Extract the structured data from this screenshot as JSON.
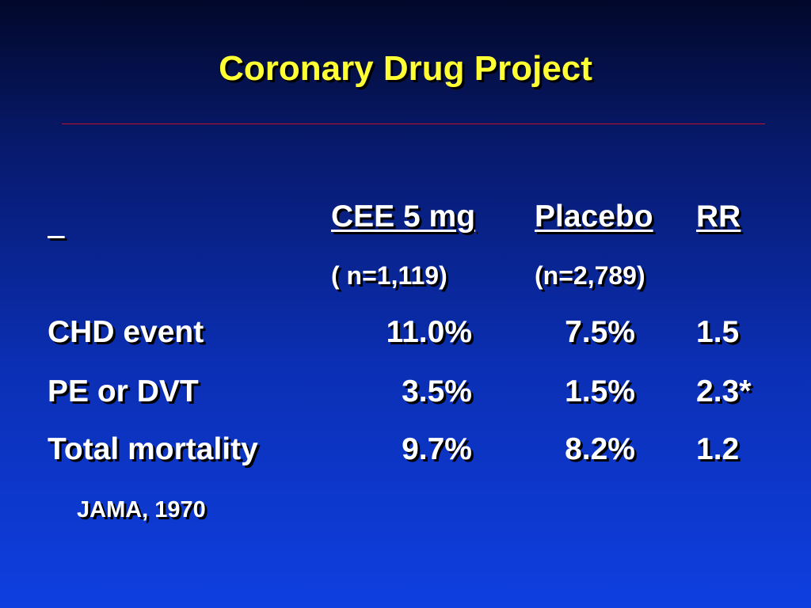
{
  "slide": {
    "title": "Coronary Drug Project",
    "citation": "JAMA, 1970"
  },
  "table": {
    "corner": "",
    "columns": [
      {
        "label": "CEE 5 mg",
        "n": "( n=1,119)"
      },
      {
        "label": "Placebo",
        "n": "(n=2,789)"
      },
      {
        "label": "RR",
        "n": ""
      }
    ],
    "rows": [
      {
        "label": "CHD event",
        "cee": "11.0%",
        "placebo": "7.5%",
        "rr": "1.5"
      },
      {
        "label": "PE or DVT",
        "cee": "3.5%",
        "placebo": "1.5%",
        "rr": "2.3*"
      },
      {
        "label": "Total mortality",
        "cee": "9.7%",
        "placebo": "8.2%",
        "rr": "1.2"
      }
    ]
  },
  "colors": {
    "title": "#ffff33",
    "text": "#ffffff",
    "rule": "#c8102e",
    "background_top": "#02082a",
    "background_bottom": "#0f3fe0"
  }
}
